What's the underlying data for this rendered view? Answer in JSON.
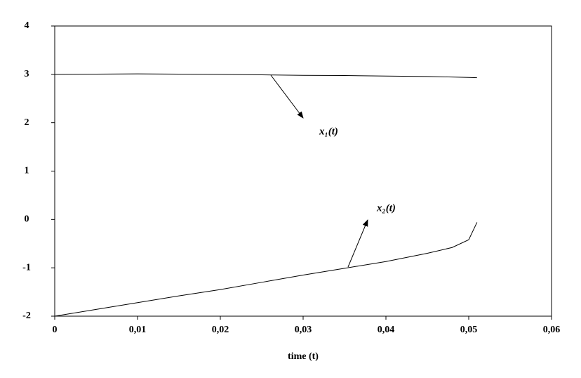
{
  "chart_data": {
    "type": "line",
    "x_label": "time (t)",
    "x": [
      0,
      0.005,
      0.01,
      0.015,
      0.02,
      0.025,
      0.03,
      0.035,
      0.04,
      0.045,
      0.048,
      0.05,
      0.051
    ],
    "series": [
      {
        "name": "x₁(t)",
        "color": "#000000",
        "values": [
          3.0,
          3.005,
          3.01,
          3.005,
          3.0,
          2.99,
          2.98,
          2.975,
          2.965,
          2.955,
          2.945,
          2.935,
          2.93
        ]
      },
      {
        "name": "x₂(t)",
        "color": "#000000",
        "values": [
          -2.0,
          -1.86,
          -1.72,
          -1.58,
          -1.45,
          -1.3,
          -1.15,
          -1.01,
          -0.87,
          -0.7,
          -0.58,
          -0.42,
          -0.06
        ]
      }
    ],
    "xlim": [
      0,
      0.06
    ],
    "xticks": [
      0,
      {
        "value": 0.01,
        "label": "0,01"
      },
      {
        "value": 0.02,
        "label": "0,02"
      },
      {
        "value": 0.03,
        "label": "0,03"
      },
      {
        "value": 0.04,
        "label": "0,04"
      },
      {
        "value": 0.05,
        "label": "0,05"
      },
      {
        "value": 0.06,
        "label": "0,06"
      }
    ],
    "ylim": [
      -2,
      4
    ],
    "yticks": [
      -2,
      -1,
      0,
      1,
      2,
      3,
      4
    ],
    "grid": false
  }
}
